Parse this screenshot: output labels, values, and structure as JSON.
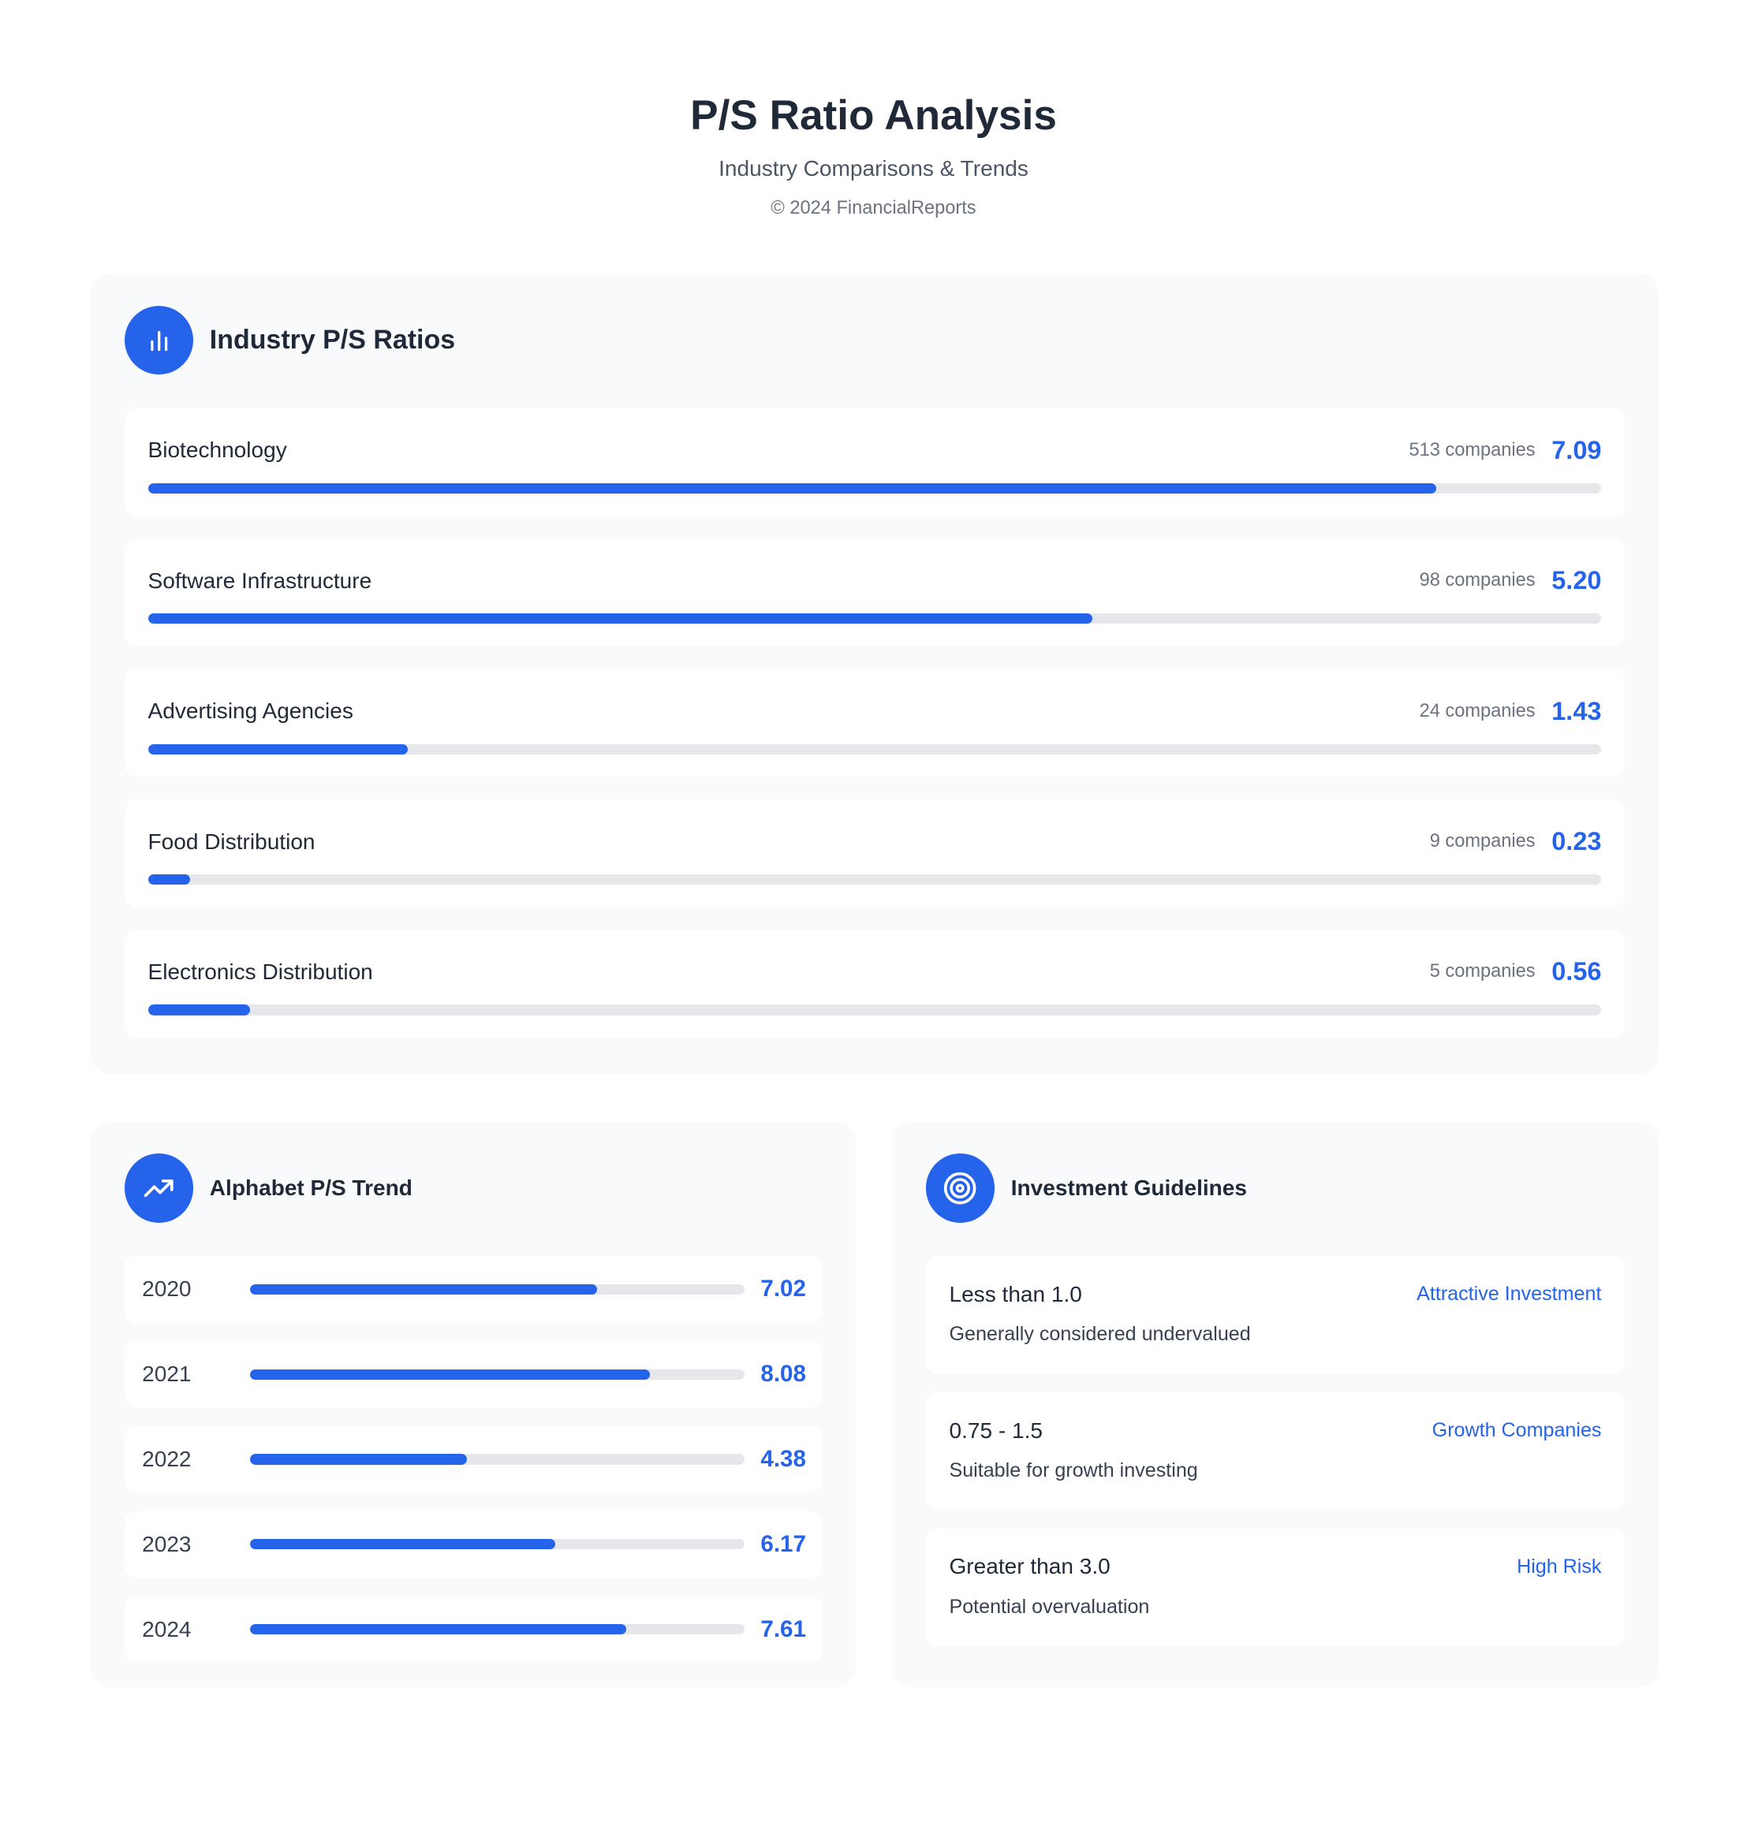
{
  "header": {
    "title": "P/S Ratio Analysis",
    "subtitle": "Industry Comparisons & Trends",
    "copyright": "© 2024 FinancialReports"
  },
  "industry": {
    "title": "Industry P/S Ratios",
    "icon": "bar-chart-icon",
    "scale_max": 8,
    "items": [
      {
        "name": "Biotechnology",
        "companies": "513 companies",
        "value": "7.09",
        "ratio": 7.09
      },
      {
        "name": "Software Infrastructure",
        "companies": "98 companies",
        "value": "5.20",
        "ratio": 5.2
      },
      {
        "name": "Advertising Agencies",
        "companies": "24 companies",
        "value": "1.43",
        "ratio": 1.43
      },
      {
        "name": "Food Distribution",
        "companies": "9 companies",
        "value": "0.23",
        "ratio": 0.23
      },
      {
        "name": "Electronics Distribution",
        "companies": "5 companies",
        "value": "0.56",
        "ratio": 0.56
      }
    ]
  },
  "trend": {
    "title": "Alphabet P/S Trend",
    "icon": "trending-up-icon",
    "scale_max": 10,
    "items": [
      {
        "year": "2020",
        "value": "7.02",
        "ratio": 7.02
      },
      {
        "year": "2021",
        "value": "8.08",
        "ratio": 8.08
      },
      {
        "year": "2022",
        "value": "4.38",
        "ratio": 4.38
      },
      {
        "year": "2023",
        "value": "6.17",
        "ratio": 6.17
      },
      {
        "year": "2024",
        "value": "7.61",
        "ratio": 7.61
      }
    ]
  },
  "guidelines": {
    "title": "Investment Guidelines",
    "icon": "target-icon",
    "items": [
      {
        "range": "Less than 1.0",
        "label": "Attractive Investment",
        "desc": "Generally considered undervalued"
      },
      {
        "range": "0.75 - 1.5",
        "label": "Growth Companies",
        "desc": "Suitable for growth investing"
      },
      {
        "range": "Greater than 3.0",
        "label": "High Risk",
        "desc": "Potential overvaluation"
      }
    ]
  },
  "colors": {
    "accent": "#2563eb",
    "track": "#e5e7eb",
    "card": "#f8fafc"
  }
}
